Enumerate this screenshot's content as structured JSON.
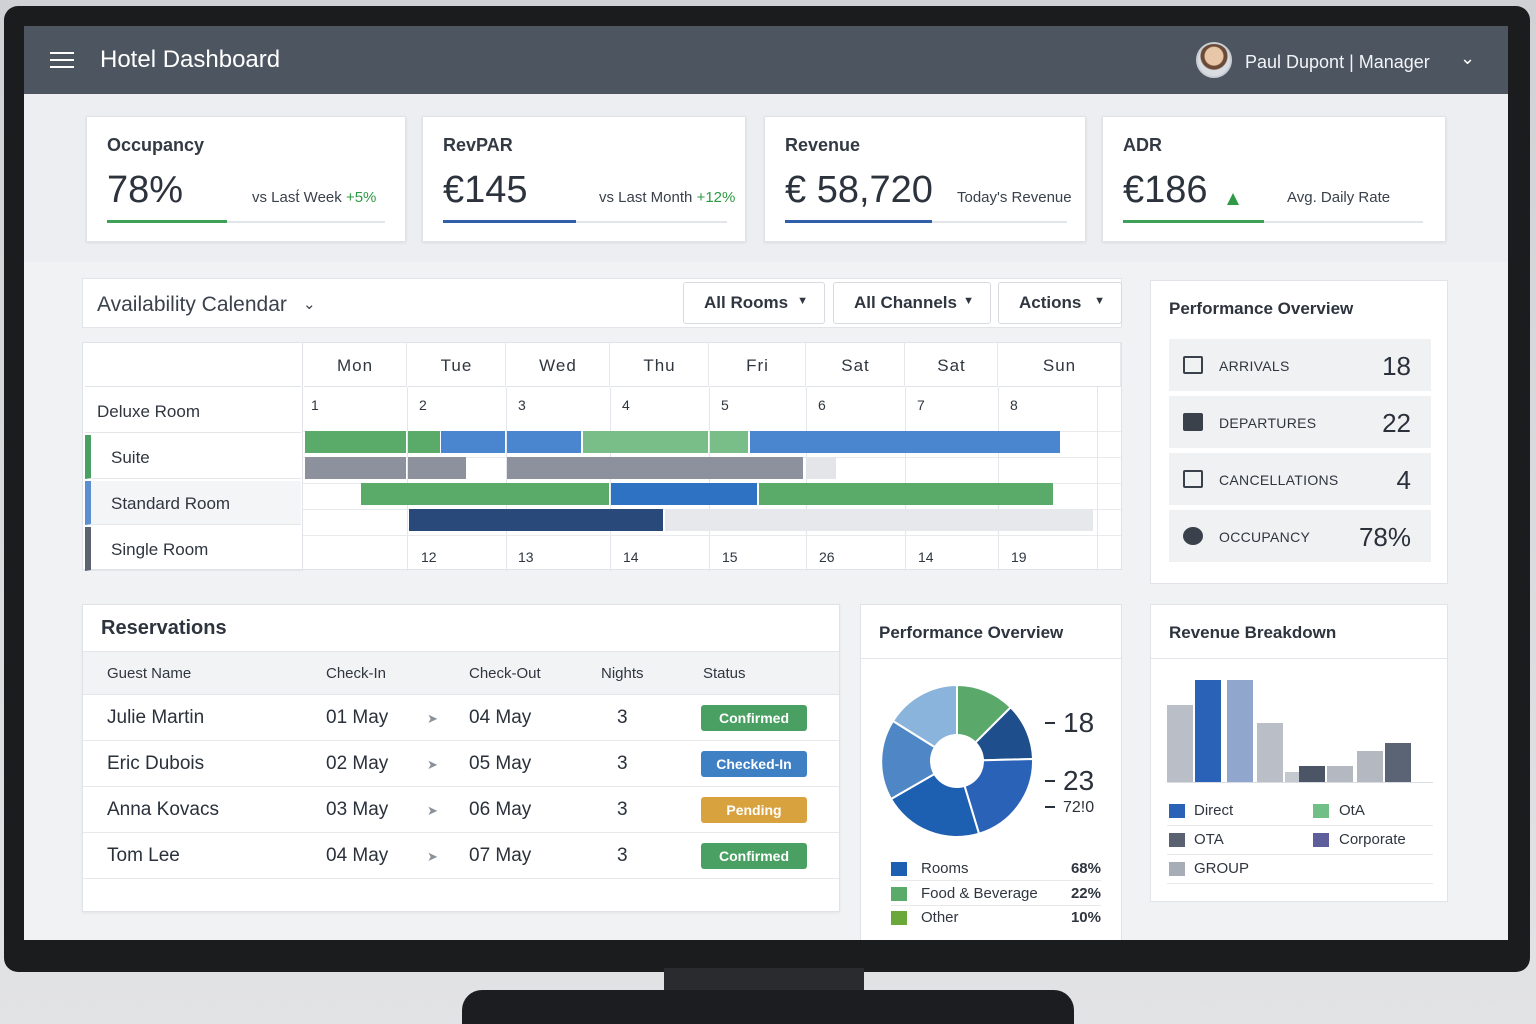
{
  "header": {
    "title": "Hotel Dashboard",
    "user": "Paul Dupont | Manager"
  },
  "kpis": [
    {
      "title": "Occupancy",
      "value": "78%",
      "sub_text": "vs Last́ Week",
      "sub_delta": "+5%",
      "progress": 0.43,
      "color": "#3fa05a"
    },
    {
      "title": "RevPAR",
      "value": "€145",
      "sub_text": "vs Last Month",
      "sub_delta": "+12%",
      "progress": 0.47,
      "color": "#2f5fa8"
    },
    {
      "title": "Revenue",
      "value": "€ 58,720",
      "sub_text": "Today's Revenue",
      "sub_delta": "",
      "progress": 0.52,
      "color": "#2f5fa8"
    },
    {
      "title": "ADR",
      "value": "€186",
      "sub_text": "Avg. Daily Rate",
      "sub_delta": "",
      "progress": 0.47,
      "color": "#3fa05a"
    }
  ],
  "calendar": {
    "title": "Availability Calendar",
    "filters": [
      "All Rooms",
      "All Channels",
      "Actions"
    ],
    "days": [
      "Mon",
      "Tue",
      "Wed",
      "Thu",
      "Fri",
      "Sat",
      "Sat",
      "Sun"
    ],
    "start_dates": [
      "1",
      "2",
      "3",
      "4",
      "5",
      "6",
      "7",
      "8"
    ],
    "end_dates": [
      "12",
      "13",
      "14",
      "15",
      "26",
      "14",
      "19"
    ],
    "rooms": [
      "Deluxe Room",
      "Suite",
      "Standard Room",
      "Single Room"
    ]
  },
  "performance": {
    "title": "Performance Overview",
    "rows": [
      {
        "label": "ARRIVALS",
        "value": "18",
        "icon": "calendar-icon"
      },
      {
        "label": "DEPARTURES",
        "value": "22",
        "icon": "clipboard-icon"
      },
      {
        "label": "CANCELLATIONS",
        "value": "4",
        "icon": "calendar-icon"
      },
      {
        "label": "OCCUPANCY",
        "value": "78%",
        "icon": "clock-icon"
      }
    ]
  },
  "reservations": {
    "title": "Reservations",
    "columns": [
      "Guest Name",
      "Check-In",
      "Check-Out",
      "Nights",
      "Status"
    ],
    "rows": [
      {
        "guest": "Julie Martin",
        "check_in": "01 May",
        "check_out": "04 May",
        "nights": "3",
        "status": "Confirmed",
        "status_color": "#4a9f63"
      },
      {
        "guest": "Eric Dubois",
        "check_in": "02 May",
        "check_out": "05 May",
        "nights": "3",
        "status": "Checked-In",
        "status_color": "#3f7fc4"
      },
      {
        "guest": "Anna Kovacs",
        "check_in": "03 May",
        "check_out": "06 May",
        "nights": "3",
        "status": "Pending",
        "status_color": "#d8a23f"
      },
      {
        "guest": "Tom Lee",
        "check_in": "04 May",
        "check_out": "07 May",
        "nights": "3",
        "status": "Confirmed",
        "status_color": "#4a9f63"
      }
    ]
  },
  "pie": {
    "title": "Performance Overview",
    "callouts": [
      "18",
      "23",
      "72!0"
    ],
    "legend": [
      {
        "label": "Rooms",
        "pct": "68%",
        "color": "#1d5fb0"
      },
      {
        "label": "Food & Beverage",
        "pct": "22%",
        "color": "#5aaa6a"
      },
      {
        "label": "Other",
        "pct": "10%",
        "color": "#6aa83a"
      }
    ]
  },
  "revenue": {
    "title": "Revenue Breakdown",
    "legend": [
      {
        "label": "Direct",
        "color": "#2a62b8"
      },
      {
        "label": "OtA",
        "color": "#6fbf86"
      },
      {
        "label": "OTA",
        "color": "#5a6272"
      },
      {
        "label": "Corporate",
        "color": "#5e5e9a"
      },
      {
        "label": "GROUP",
        "color": "#a7adb7"
      }
    ]
  },
  "chart_data": {
    "type": "bar",
    "title": "Revenue Breakdown",
    "values": [
      78,
      104,
      104,
      60,
      10,
      16,
      16,
      32,
      40
    ],
    "colors": [
      "#b9bec7",
      "#2a62b8",
      "#90a6cc",
      "#b9bec7",
      "#c4c8cf",
      "#4c5565",
      "#b3b8c1",
      "#b3b8c1",
      "#5b6475"
    ]
  }
}
